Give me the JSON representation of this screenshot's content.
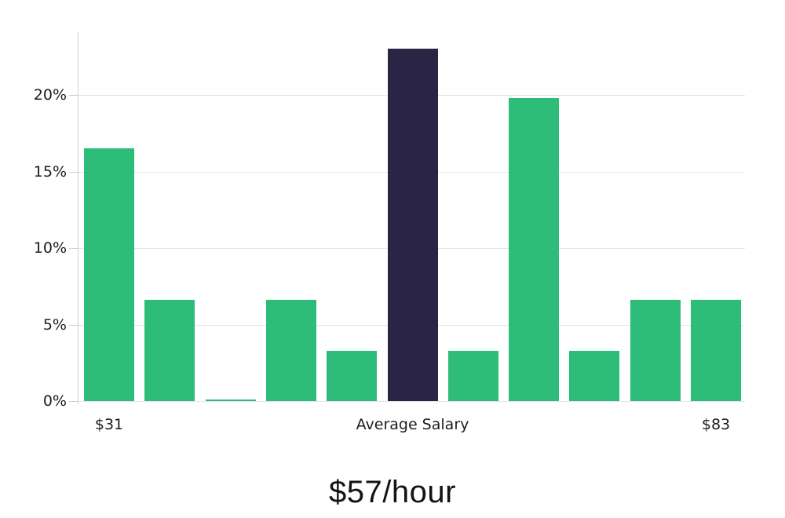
{
  "chart_data": {
    "type": "bar",
    "title": "$57/hour",
    "xlabel": "",
    "ylabel": "",
    "grid": true,
    "legend": "none",
    "ylim": [
      0,
      24.2
    ],
    "yticks": [
      0,
      5,
      10,
      15,
      20
    ],
    "ytick_labels": [
      "0%",
      "5%",
      "10%",
      "15%",
      "20%"
    ],
    "values": [
      16.5,
      6.6,
      0.1,
      6.6,
      3.3,
      23.0,
      3.3,
      19.8,
      3.3,
      6.6,
      6.6
    ],
    "highlight_index": 5,
    "bar_color": "#2dbd78",
    "highlight_color": "#2a2545",
    "x_tick_labels": [
      {
        "label": "$31",
        "bar_index": 0
      },
      {
        "label": "Average Salary",
        "bar_index": 5
      },
      {
        "label": "$83",
        "bar_index": 10
      }
    ]
  }
}
